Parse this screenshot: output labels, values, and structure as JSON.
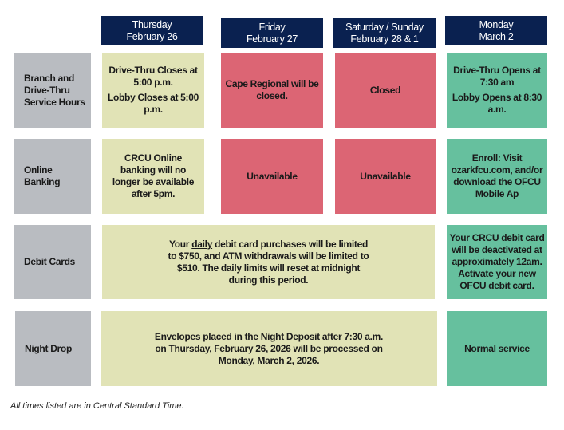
{
  "headers": [
    {
      "day": "Thursday",
      "date": "February 26"
    },
    {
      "day": "Friday",
      "date": "February 27"
    },
    {
      "day": "Saturday / Sunday",
      "date": "February 28 & 1"
    },
    {
      "day": "Monday",
      "date": "March 2"
    }
  ],
  "rows": {
    "branch": {
      "label": "Branch and Drive-Thru Service Hours",
      "thursday": [
        "Drive-Thru Closes at 5:00 p.m.",
        "Lobby Closes at 5:00 p.m."
      ],
      "friday": "Cape Regional will be closed.",
      "weekend": "Closed",
      "monday": [
        "Drive-Thru Opens at 7:30 am",
        "Lobby Opens at 8:30 a.m."
      ]
    },
    "online": {
      "label": "Online Banking",
      "thursday": "CRCU Online banking will no longer be available after 5pm.",
      "friday": "Unavailable",
      "weekend": "Unavailable",
      "monday": "Enroll: Visit ozarkfcu.com, and/or download the OFCU Mobile Ap"
    },
    "debit": {
      "label": "Debit Cards",
      "span_pre": "Your ",
      "span_underlined": "daily",
      "span_post": " debit card purchases will be limited to $750, and ATM withdrawals will be limited to $510.  The daily limits will reset at midnight during this period.",
      "monday": "Your CRCU debit card will be deactivated at approximately 12am. Activate your new OFCU debit card."
    },
    "night": {
      "label": "Night Drop",
      "span": "Envelopes placed in the Night Deposit after 7:30 a.m. on Thursday, February 26, 2026 will be processed on Monday, March 2, 2026.",
      "monday": "Normal service"
    }
  },
  "footnote": "All times listed are in Central Standard Time.",
  "colors": {
    "header": "#0a2150",
    "label": "#b9bcc1",
    "open": "#e1e3b6",
    "closed": "#dc6574",
    "normal": "#66c09e"
  }
}
